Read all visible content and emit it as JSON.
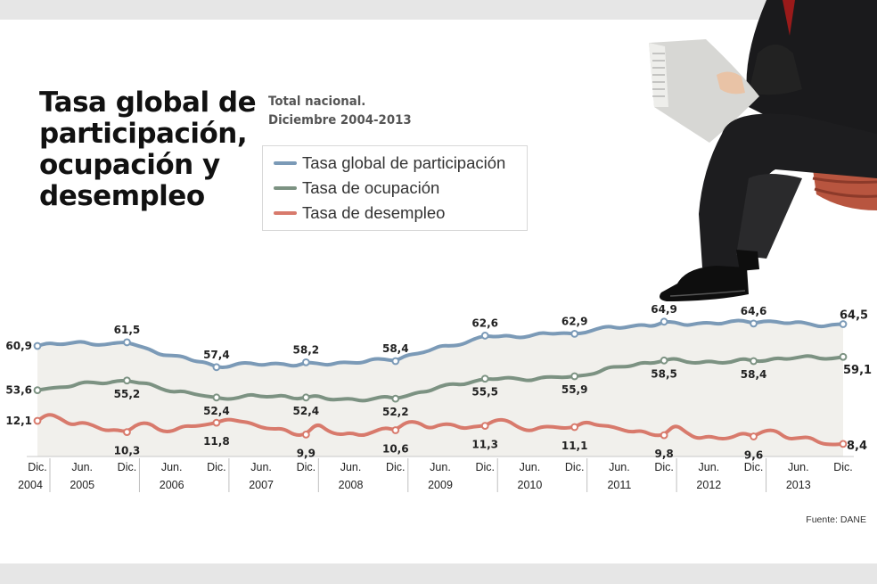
{
  "title": "Tasa global de participación, ocupación y desempleo",
  "subtitle_lines": [
    "Total nacional.",
    "Diciembre 2004-2013"
  ],
  "source": "Fuente: DANE",
  "colors": {
    "tgp": "#7b9ab7",
    "to": "#7c9282",
    "td": "#d87a6c",
    "area": "#f1f0ec"
  },
  "chart_data": {
    "type": "line",
    "x_ticks": [
      "Dic.",
      "Jun.",
      "Dic.",
      "Jun.",
      "Dic.",
      "Jun.",
      "Dic.",
      "Jun.",
      "Dic.",
      "Jun.",
      "Dic.",
      "Jun.",
      "Dic.",
      "Jun.",
      "Dic.",
      "Jun.",
      "Dic.",
      "Jun.",
      "Dic."
    ],
    "years": [
      "2004",
      "2005",
      "2006",
      "2007",
      "2008",
      "2009",
      "2010",
      "2011",
      "2012",
      "2013"
    ],
    "labeled_points": [
      "Dic. 2004",
      "Dic. 2005",
      "Dic. 2006",
      "Dic. 2007",
      "Dic. 2008",
      "Dic. 2009",
      "Dic. 2010",
      "Dic. 2011",
      "Dic. 2012",
      "Dic. 2013"
    ],
    "series": [
      {
        "name": "Tasa global de participación",
        "key": "tgp",
        "values": [
          60.9,
          61.5,
          57.4,
          58.2,
          58.4,
          62.6,
          62.9,
          64.9,
          64.6,
          64.5
        ],
        "labels": [
          "60,9",
          "61,5",
          "57,4",
          "58,2",
          "58,4",
          "62,6",
          "62,9",
          "64,9",
          "64,6",
          "64,5"
        ]
      },
      {
        "name": "Tasa de ocupación",
        "key": "to",
        "values": [
          53.6,
          55.2,
          52.4,
          52.4,
          52.2,
          55.5,
          55.9,
          58.5,
          58.4,
          59.1
        ],
        "labels": [
          "53,6",
          "55,2",
          "52,4",
          "52,4",
          "52,2",
          "55,5",
          "55,9",
          "58,5",
          "58,4",
          "59,1"
        ]
      },
      {
        "name": "Tasa de desempleo",
        "key": "td",
        "values": [
          12.1,
          10.3,
          11.8,
          9.9,
          10.6,
          11.3,
          11.1,
          9.8,
          9.6,
          8.4
        ],
        "labels": [
          "12,1",
          "10,3",
          "11,8",
          "9,9",
          "10,6",
          "11,3",
          "11,1",
          "9,8",
          "9,6",
          "8,4"
        ]
      }
    ]
  }
}
